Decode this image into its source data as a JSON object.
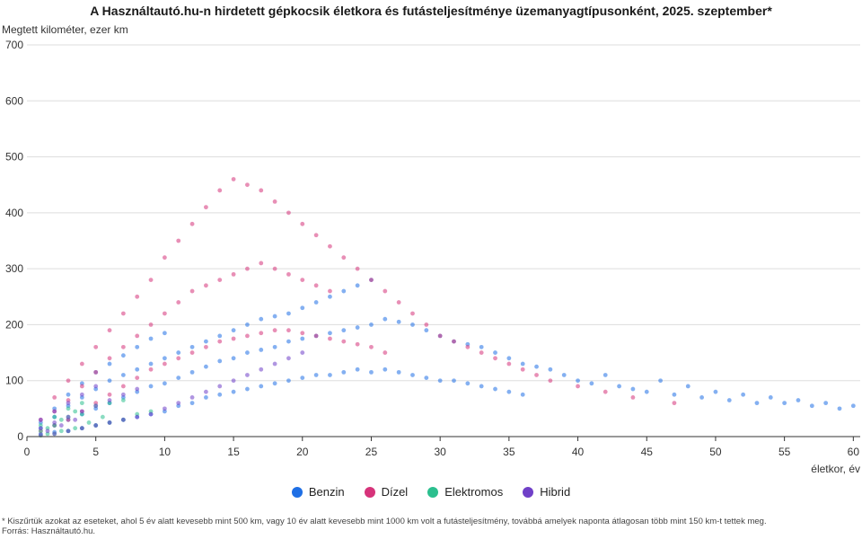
{
  "chart_data": {
    "type": "scatter",
    "title": "A Használtautó.hu-n hirdetett gépkocsik életkora és futásteljesítménye üzemanyagtípusonként, 2025. szeptember*",
    "ylabel": "Megtett kilométer, ezer km",
    "xlabel": "életkor, év",
    "xlim": [
      0,
      60.5
    ],
    "ylim": [
      0,
      700
    ],
    "x_ticks": [
      "0",
      "5",
      "10",
      "15",
      "20",
      "25",
      "30",
      "35",
      "40",
      "45",
      "50",
      "55",
      "60"
    ],
    "y_ticks": [
      "0",
      "100",
      "200",
      "300",
      "400",
      "500",
      "600",
      "700"
    ],
    "grid": "horizontal",
    "legend_position": "bottom",
    "series": [
      {
        "name": "Benzin",
        "color": "#1f6fe5",
        "x": [
          1,
          1,
          1,
          2,
          2,
          2,
          2,
          3,
          3,
          3,
          3,
          4,
          4,
          4,
          4,
          5,
          5,
          5,
          5,
          6,
          6,
          6,
          6,
          7,
          7,
          7,
          7,
          8,
          8,
          8,
          8,
          9,
          9,
          9,
          9,
          10,
          10,
          10,
          10,
          11,
          11,
          11,
          12,
          12,
          12,
          13,
          13,
          13,
          14,
          14,
          14,
          15,
          15,
          15,
          16,
          16,
          16,
          17,
          17,
          17,
          18,
          18,
          18,
          19,
          19,
          19,
          20,
          20,
          20,
          21,
          21,
          21,
          22,
          22,
          22,
          23,
          23,
          23,
          24,
          24,
          24,
          25,
          25,
          25,
          26,
          26,
          27,
          27,
          28,
          28,
          29,
          29,
          30,
          30,
          31,
          31,
          32,
          32,
          33,
          33,
          34,
          34,
          35,
          35,
          36,
          36,
          37,
          38,
          39,
          40,
          41,
          42,
          43,
          44,
          45,
          46,
          47,
          48,
          49,
          50,
          51,
          52,
          53,
          54,
          55,
          56,
          57,
          58,
          59,
          60
        ],
        "y": [
          5,
          15,
          25,
          8,
          20,
          35,
          50,
          10,
          30,
          55,
          75,
          15,
          40,
          70,
          95,
          20,
          50,
          85,
          115,
          25,
          60,
          100,
          130,
          30,
          70,
          110,
          145,
          35,
          80,
          120,
          160,
          40,
          90,
          130,
          175,
          45,
          95,
          140,
          185,
          55,
          105,
          150,
          60,
          115,
          160,
          70,
          125,
          170,
          75,
          135,
          180,
          80,
          140,
          190,
          85,
          150,
          200,
          90,
          155,
          210,
          95,
          160,
          215,
          100,
          170,
          220,
          105,
          175,
          230,
          110,
          180,
          240,
          110,
          185,
          250,
          115,
          190,
          260,
          120,
          195,
          270,
          115,
          200,
          280,
          120,
          210,
          115,
          205,
          110,
          200,
          105,
          190,
          100,
          180,
          100,
          170,
          95,
          165,
          90,
          160,
          85,
          150,
          80,
          140,
          75,
          130,
          125,
          120,
          110,
          100,
          95,
          110,
          90,
          85,
          80,
          100,
          75,
          90,
          70,
          80,
          65,
          75,
          60,
          70,
          60,
          65,
          55,
          60,
          50,
          55
        ]
      },
      {
        "name": "Dízel",
        "color": "#d6337a",
        "x": [
          1,
          1,
          2,
          2,
          2,
          3,
          3,
          3,
          4,
          4,
          4,
          5,
          5,
          5,
          6,
          6,
          6,
          7,
          7,
          7,
          8,
          8,
          8,
          9,
          9,
          9,
          10,
          10,
          10,
          11,
          11,
          11,
          12,
          12,
          12,
          13,
          13,
          13,
          14,
          14,
          14,
          15,
          15,
          15,
          16,
          16,
          16,
          17,
          17,
          17,
          18,
          18,
          18,
          19,
          19,
          19,
          20,
          20,
          20,
          21,
          21,
          21,
          22,
          22,
          22,
          23,
          23,
          24,
          24,
          25,
          25,
          26,
          26,
          27,
          28,
          29,
          30,
          31,
          32,
          33,
          34,
          35,
          36,
          37,
          38,
          40,
          42,
          44,
          47
        ],
        "y": [
          10,
          30,
          20,
          45,
          70,
          30,
          65,
          100,
          45,
          90,
          130,
          60,
          115,
          160,
          75,
          140,
          190,
          90,
          160,
          220,
          105,
          180,
          250,
          120,
          200,
          280,
          130,
          220,
          320,
          140,
          240,
          350,
          150,
          260,
          380,
          160,
          270,
          410,
          170,
          280,
          440,
          175,
          290,
          460,
          180,
          300,
          450,
          185,
          310,
          440,
          190,
          300,
          420,
          190,
          290,
          400,
          185,
          280,
          380,
          180,
          270,
          360,
          175,
          260,
          340,
          170,
          320,
          165,
          300,
          160,
          280,
          150,
          260,
          240,
          220,
          200,
          180,
          170,
          160,
          150,
          140,
          130,
          120,
          110,
          100,
          90,
          80,
          70,
          60
        ]
      },
      {
        "name": "Elektromos",
        "color": "#2bbf8e",
        "x": [
          1,
          1,
          1,
          1.5,
          1.5,
          2,
          2,
          2,
          2.5,
          2.5,
          3,
          3,
          3,
          3.5,
          3.5,
          4,
          4,
          4,
          4.5,
          5,
          5,
          5.5,
          6,
          6,
          7,
          7,
          8,
          9
        ],
        "y": [
          2,
          10,
          20,
          5,
          15,
          5,
          20,
          35,
          10,
          30,
          10,
          35,
          50,
          15,
          45,
          15,
          40,
          60,
          25,
          20,
          55,
          35,
          25,
          60,
          30,
          65,
          40,
          45
        ]
      },
      {
        "name": "Hibrid",
        "color": "#7040c8",
        "x": [
          1,
          1,
          1,
          1.5,
          2,
          2,
          2,
          2.5,
          3,
          3,
          3,
          3.5,
          4,
          4,
          4,
          5,
          5,
          5,
          6,
          6,
          7,
          7,
          8,
          8,
          9,
          10,
          11,
          12,
          13,
          14,
          15,
          16,
          17,
          18,
          19,
          20
        ],
        "y": [
          3,
          15,
          30,
          10,
          5,
          25,
          45,
          20,
          10,
          35,
          60,
          30,
          15,
          45,
          75,
          20,
          55,
          90,
          25,
          65,
          30,
          75,
          35,
          85,
          40,
          50,
          60,
          70,
          80,
          90,
          100,
          110,
          120,
          130,
          140,
          150
        ]
      }
    ]
  },
  "legend": [
    {
      "label": "Benzin",
      "color": "#1f6fe5"
    },
    {
      "label": "Dízel",
      "color": "#d6337a"
    },
    {
      "label": "Elektromos",
      "color": "#2bbf8e"
    },
    {
      "label": "Hibrid",
      "color": "#7040c8"
    }
  ],
  "footnote_line1": "* Kiszűrtük azokat az eseteket, ahol 5 év alatt kevesebb mint 500 km, vagy 10 év alatt kevesebb mint 1000 km volt a futásteljesítmény, továbbá amelyek naponta átlagosan több mint 150 km-t tettek meg.",
  "footnote_line2": "Forrás: Használtautó.hu."
}
